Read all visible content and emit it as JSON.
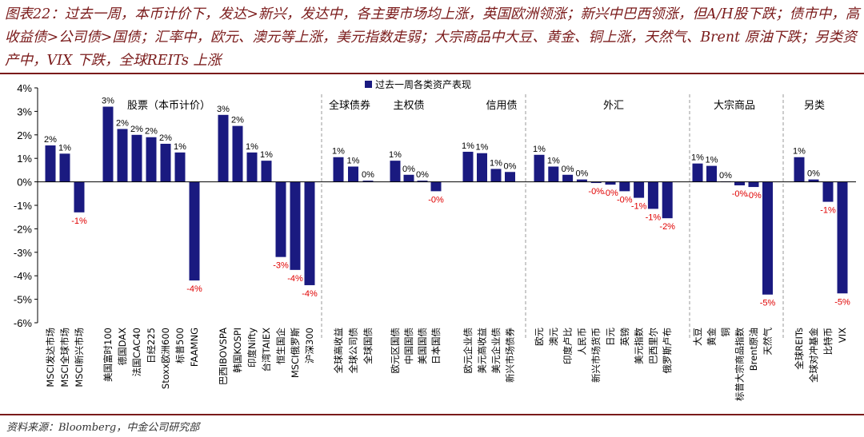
{
  "caption": "图表22：过去一周，本币计价下，发达>新兴，发达中，各主要市场均上涨，英国欧洲领涨；新兴中巴西领涨，但A/H股下跌；债市中，高收益债>公司债>国债；汇率中，欧元、澳元等上涨，美元指数走弱；大宗商品中大豆、黄金、铜上涨，天然气、Brent 原油下跌；另类资产中，VIX 下跌，全球REITs 上涨",
  "source": "资料来源：Bloomberg，中金公司研究部",
  "colors": {
    "bar": "#1a1a80",
    "negative_label": "#e00000",
    "caption": "#7a1a1a",
    "divider": "#999999"
  },
  "chart_data": {
    "type": "bar",
    "legend": "过去一周各类资产表现",
    "legend_position": "top-center",
    "ylim": [
      -6,
      4
    ],
    "yticks": [
      "-6%",
      "-5%",
      "-4%",
      "-3%",
      "-2%",
      "-1%",
      "0%",
      "1%",
      "2%",
      "3%",
      "4%"
    ],
    "groups": [
      {
        "label": "股票（本币计价）",
        "categories": [
          "MSCI发达市场",
          "MSCI全球市场",
          "MSCI新兴市场",
          "",
          "美国富时100",
          "德国DAX",
          "法国CAC40",
          "日经225",
          "Stoxx欧洲600",
          "标普500",
          "FAAMNG",
          "",
          "巴西IBOVSPA",
          "韩国KOSPI",
          "印度Nifty",
          "台湾TAIEX",
          "恒生国企",
          "MSCI俄罗斯",
          "沪深300"
        ],
        "values": [
          1.55,
          1.2,
          -1.3,
          null,
          3.2,
          2.25,
          2.0,
          1.9,
          1.62,
          1.25,
          -4.2,
          null,
          2.85,
          2.38,
          1.25,
          0.9,
          -3.2,
          -3.75,
          -4.4
        ],
        "data_labels": [
          "2%",
          "1%",
          "-1%",
          "",
          "3%",
          "2%",
          "2%",
          "2%",
          "2%",
          "1%",
          "-4%",
          "",
          "3%",
          "2%",
          "1%",
          "1%",
          "-3%",
          "-4%",
          "-4%"
        ]
      },
      {
        "label": "全球债券",
        "categories": [
          "全球高收益",
          "全球公司债",
          "全球国债"
        ],
        "values": [
          1.05,
          0.65,
          0.05
        ],
        "data_labels": [
          "1%",
          "1%",
          "0%"
        ]
      },
      {
        "label": "主权债",
        "categories": [
          "欧元区国债",
          "中国国债",
          "美国国债",
          "日本国债"
        ],
        "values": [
          0.9,
          0.3,
          0.05,
          -0.4
        ],
        "data_labels": [
          "1%",
          "0%",
          "0%",
          "-0%"
        ]
      },
      {
        "label": "信用债",
        "categories": [
          "欧元企业债",
          "美元高收益",
          "美元企业债",
          "新兴市场债券"
        ],
        "values": [
          1.28,
          1.22,
          0.55,
          0.42
        ],
        "data_labels": [
          "1%",
          "1%",
          "1%",
          "0%"
        ]
      },
      {
        "label": "外汇",
        "categories": [
          "欧元",
          "澳元",
          "印度卢比",
          "人民币",
          "新兴市场货币",
          "日元",
          "英镑",
          "美元指数",
          "巴西里尔",
          "俄罗斯卢布"
        ],
        "values": [
          1.15,
          0.65,
          0.3,
          0.1,
          -0.05,
          -0.12,
          -0.4,
          -0.68,
          -1.15,
          -1.55
        ],
        "data_labels": [
          "1%",
          "1%",
          "0%",
          "0%",
          "-0%",
          "-0%",
          "-0%",
          "-1%",
          "-1%",
          "-2%"
        ]
      },
      {
        "label": "大宗商品",
        "categories": [
          "大豆",
          "黄金",
          "铜",
          "标普大宗商品指数",
          "Brent原油",
          "天然气"
        ],
        "values": [
          0.78,
          0.68,
          0.02,
          -0.15,
          -0.22,
          -4.8
        ],
        "data_labels": [
          "1%",
          "1%",
          "0%",
          "-0%",
          "-0%",
          "-5%"
        ]
      },
      {
        "label": "另类",
        "categories": [
          "全球REITs",
          "全球对冲基金",
          "比特币",
          "VIX"
        ],
        "values": [
          1.05,
          0.1,
          -0.85,
          -4.75
        ],
        "data_labels": [
          "1%",
          "0%",
          "-1%",
          "-5%"
        ]
      }
    ]
  }
}
